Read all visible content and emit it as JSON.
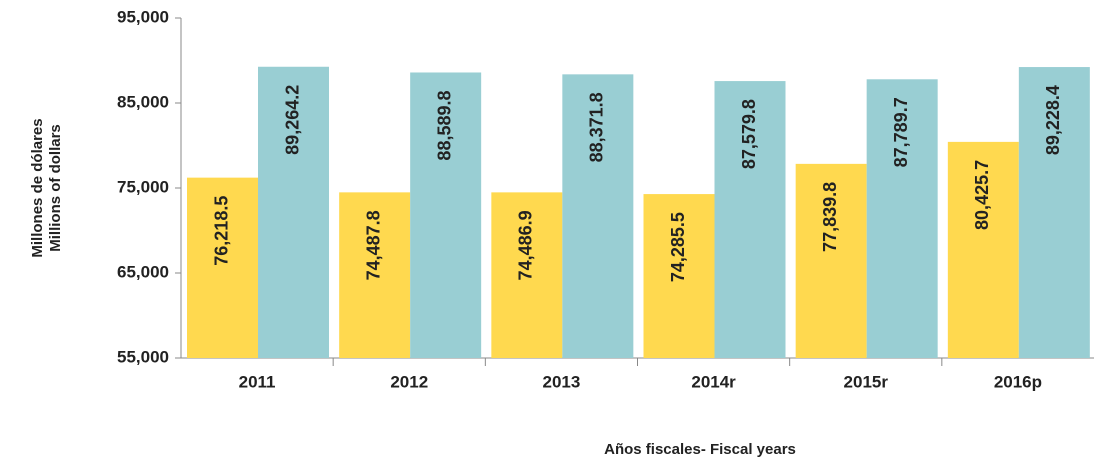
{
  "chart_data": {
    "type": "bar",
    "x_label": "Años fiscales- Fiscal years",
    "y_label": [
      "Millones de dólares",
      "Millions of dollars"
    ],
    "categories": [
      "2011",
      "2012",
      "2013",
      "2014r",
      "2015r",
      "2016p"
    ],
    "series": [
      {
        "color": "#FFD94F",
        "values": [
          76218.5,
          74487.8,
          74486.9,
          74285.5,
          77839.8,
          80425.7
        ],
        "value_labels": [
          "76,218.5",
          "74,487.8",
          "74,486.9",
          "74,285.5",
          "77,839.8",
          "80,425.7"
        ]
      },
      {
        "color": "#99CED3",
        "values": [
          89264.2,
          88589.8,
          88371.8,
          87579.8,
          87789.7,
          89228.4
        ],
        "value_labels": [
          "89,264.2",
          "88,589.8",
          "88,371.8",
          "87,579.8",
          "87,789.7",
          "89,228.4"
        ]
      }
    ],
    "ylim": [
      55000,
      95000
    ],
    "yticks": [
      {
        "value": 55000,
        "label": "55,000"
      },
      {
        "value": 65000,
        "label": "65,000"
      },
      {
        "value": 75000,
        "label": "75,000"
      },
      {
        "value": 85000,
        "label": "85,000"
      },
      {
        "value": 95000,
        "label": "95,000"
      }
    ]
  }
}
